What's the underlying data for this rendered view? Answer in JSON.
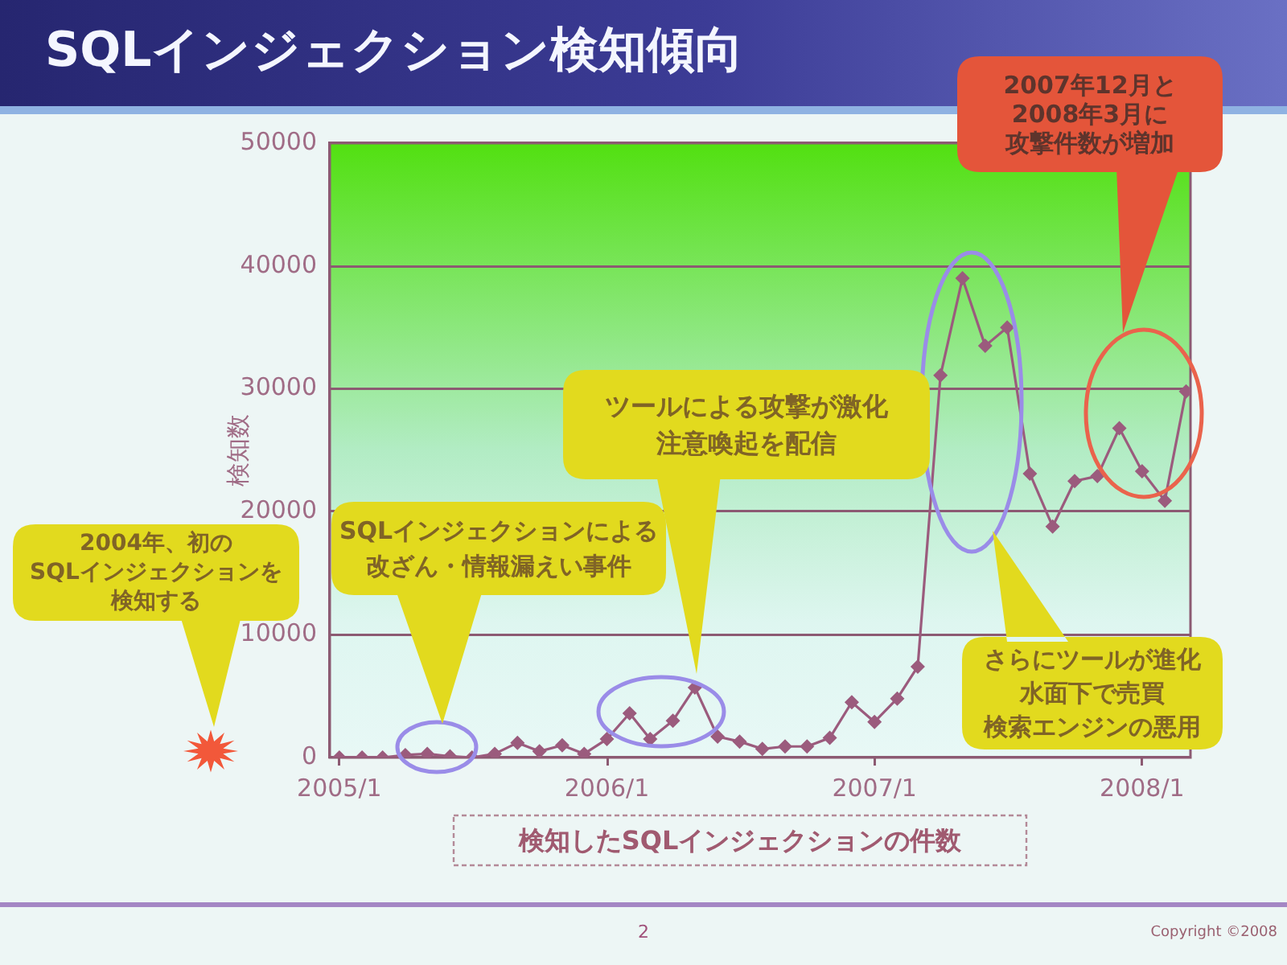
{
  "chart_data": {
    "type": "line",
    "title": "SQLインジェクション検知傾向",
    "ylabel": "検知数",
    "x": [
      "2005-01",
      "2005-02",
      "2005-03",
      "2005-04",
      "2005-05",
      "2005-06",
      "2005-07",
      "2005-08",
      "2005-09",
      "2005-10",
      "2005-11",
      "2005-12",
      "2006-01",
      "2006-02",
      "2006-03",
      "2006-04",
      "2006-05",
      "2006-06",
      "2006-07",
      "2006-08",
      "2006-09",
      "2006-10",
      "2006-11",
      "2006-12",
      "2007-01",
      "2007-02",
      "2007-03",
      "2007-04",
      "2007-05",
      "2007-06",
      "2007-07",
      "2007-08",
      "2007-09",
      "2007-10",
      "2007-11",
      "2007-12",
      "2008-01",
      "2008-02",
      "2008-03"
    ],
    "series": [
      {
        "color": "#9b5b7d",
        "values": [
          0,
          0,
          0,
          200,
          300,
          100,
          0,
          300,
          1200,
          500,
          1000,
          300,
          1500,
          3600,
          1500,
          3000,
          5700,
          1700,
          1300,
          700,
          900,
          900,
          1600,
          4500,
          2900,
          4800,
          7400,
          31100,
          39000,
          33500,
          35000,
          23100,
          18800,
          22500,
          22900,
          26800,
          23300,
          20900,
          29800
        ]
      }
    ],
    "xlim": [
      "2004-12-19",
      "2008-03-07"
    ],
    "xticks": [
      {
        "value": "2005-01",
        "label": "2005/1"
      },
      {
        "value": "2006-01",
        "label": "2006/1"
      },
      {
        "value": "2007-01",
        "label": "2007/1"
      },
      {
        "value": "2008-01",
        "label": "2008/1"
      }
    ],
    "ylim": [
      0,
      50000
    ],
    "yticks": [
      0,
      10000,
      20000,
      30000,
      40000,
      50000
    ],
    "grid": "y",
    "marker": "diamond",
    "line_style": "solid",
    "legend": false,
    "annotations": [
      "2007年12月と2008年3月に攻撃件数が増加",
      "ツールによる攻撃が激化注意喚起を配信",
      "SQLインジェクションによる改ざん・情報漏えい事件",
      "2004年、初のSQLインジェクションを検知する",
      "さらにツールが進化水面下で売買検索エンジンの悪用",
      "検知したSQLインジェクションの件数",
      "2",
      "Copyright ©2008"
    ]
  }
}
